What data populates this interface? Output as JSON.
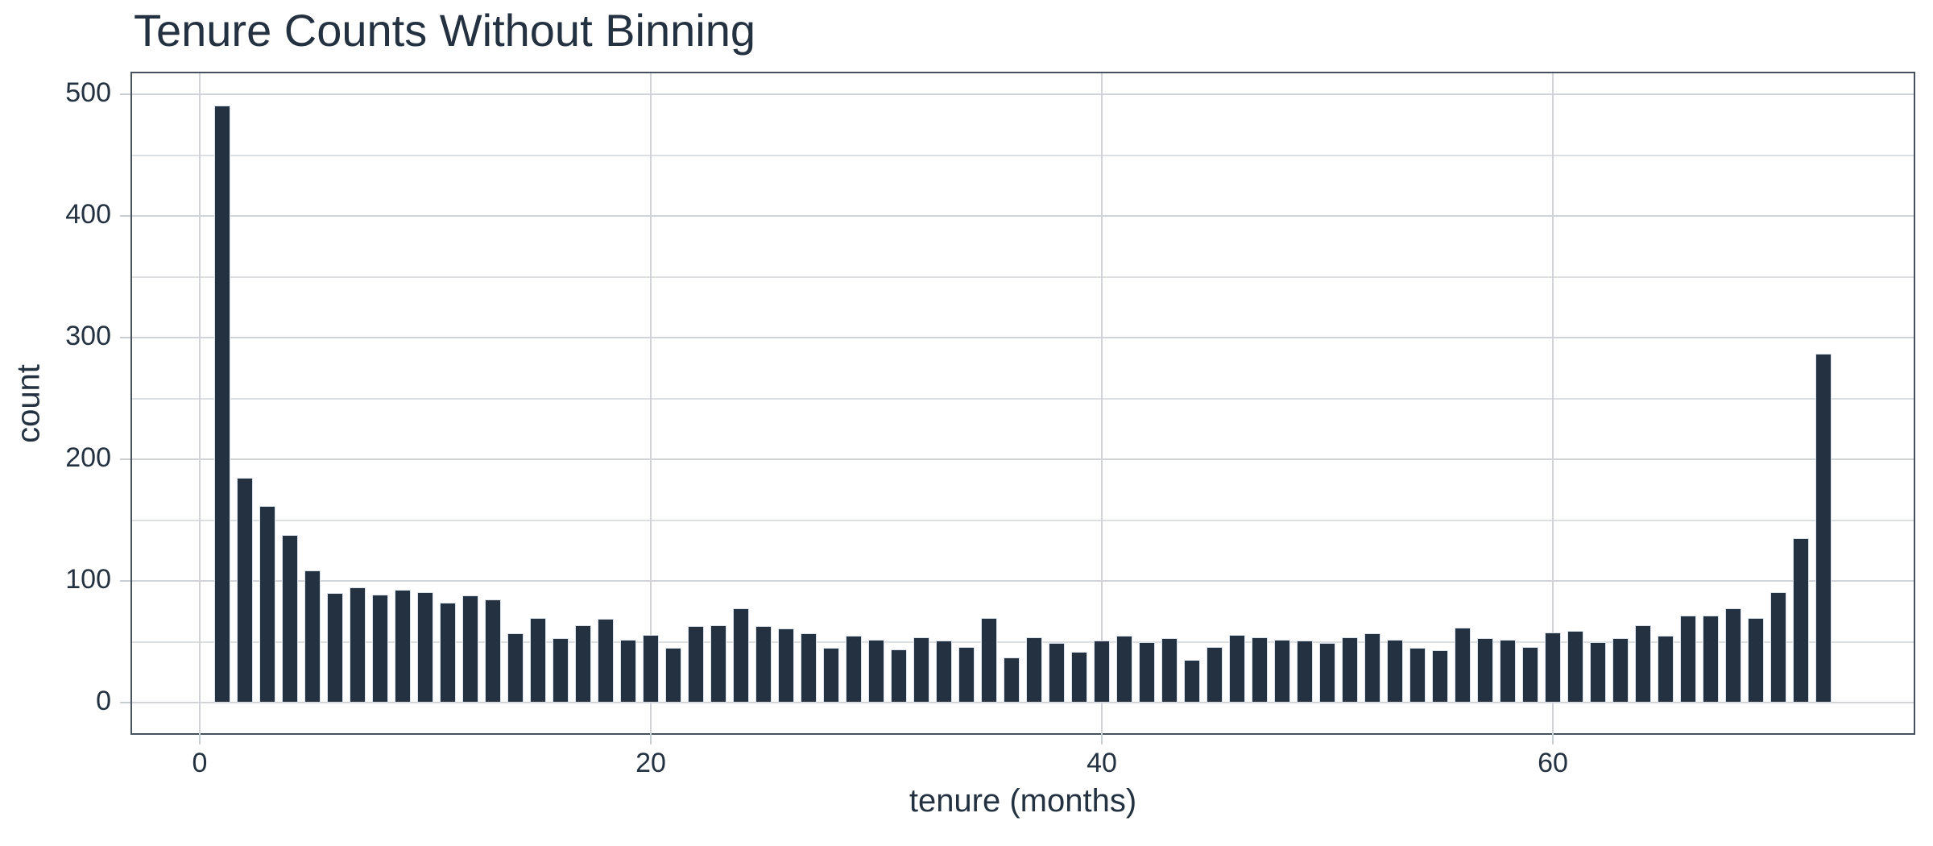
{
  "chart_data": {
    "type": "bar",
    "title": "Tenure Counts Without Binning",
    "xlabel": "tenure (months)",
    "ylabel": "count",
    "legend": "none",
    "grid": "horizontal major+minor, vertical major",
    "xlim": [
      -3.0,
      76.0
    ],
    "ylim": [
      -25,
      517.5
    ],
    "x_major_ticks": [
      0,
      20,
      40,
      60
    ],
    "y_major_ticks": [
      0,
      100,
      200,
      300,
      400,
      500
    ],
    "y_minor_gridlines": [
      50,
      150,
      250,
      350,
      450
    ],
    "x": [
      1,
      2,
      3,
      4,
      5,
      6,
      7,
      8,
      9,
      10,
      11,
      12,
      13,
      14,
      15,
      16,
      17,
      18,
      19,
      20,
      21,
      22,
      23,
      24,
      25,
      26,
      27,
      28,
      29,
      30,
      31,
      32,
      33,
      34,
      35,
      36,
      37,
      38,
      39,
      40,
      41,
      42,
      43,
      44,
      45,
      46,
      47,
      48,
      49,
      50,
      51,
      52,
      53,
      54,
      55,
      56,
      57,
      58,
      59,
      60,
      61,
      62,
      63,
      64,
      65,
      66,
      67,
      68,
      69,
      70,
      71,
      72
    ],
    "values": [
      491,
      185,
      162,
      138,
      109,
      90,
      95,
      89,
      93,
      91,
      82,
      88,
      85,
      57,
      70,
      53,
      64,
      69,
      52,
      56,
      45,
      63,
      64,
      78,
      63,
      61,
      57,
      45,
      55,
      52,
      44,
      54,
      51,
      46,
      70,
      37,
      54,
      49,
      42,
      51,
      55,
      50,
      53,
      35,
      46,
      56,
      54,
      52,
      51,
      49,
      54,
      57,
      52,
      45,
      43,
      62,
      53,
      52,
      46,
      58,
      59,
      50,
      53,
      64,
      55,
      72,
      72,
      78,
      70,
      91,
      135,
      287
    ],
    "bar_width_fraction": 0.7,
    "colors": {
      "bar": "#233140",
      "bar_edge": "#dbe1e8",
      "grid_major": "#d0d4d8",
      "grid_minor": "#dcdfe2",
      "spine": "#47525e",
      "tick": "#c9ced3",
      "text": "#233140",
      "background": "#ffffff"
    }
  }
}
